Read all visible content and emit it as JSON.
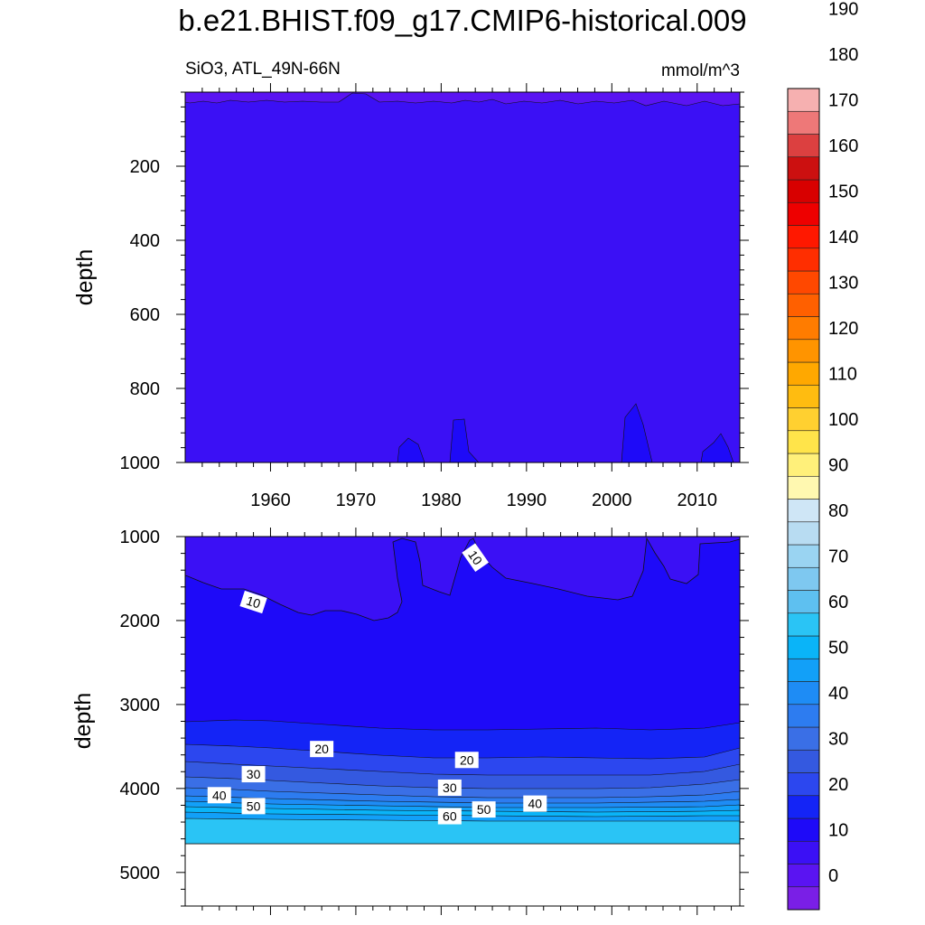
{
  "title": "b.e21.BHIST.f09_g17.CMIP6-historical.009",
  "subtitle_left": "SiO3, ATL_49N-66N",
  "subtitle_right": "mmol/m^3",
  "chart_data": [
    {
      "type": "contour",
      "panel": "upper",
      "xlabel": "",
      "ylabel": "depth",
      "xlim": [
        1950,
        2015
      ],
      "ylim": [
        1000,
        0
      ],
      "x_ticks": [
        1960,
        1970,
        1980,
        1990,
        2000,
        2010
      ],
      "y_ticks": [
        200,
        400,
        600,
        800,
        1000
      ],
      "regions": [
        {
          "level_range": [
            0,
            5
          ],
          "desc": "thin surface layer",
          "depth_range": [
            0,
            35
          ]
        },
        {
          "level_range": [
            5,
            10
          ],
          "desc": "bulk of upper ocean",
          "depth_range": [
            35,
            1000
          ]
        },
        {
          "level_range": [
            10,
            15
          ],
          "desc": "intrusions near bottom",
          "years": [
            1976,
            1982,
            2002,
            2012
          ],
          "depth_range": [
            860,
            1000
          ]
        }
      ]
    },
    {
      "type": "contour",
      "panel": "lower",
      "xlabel": "",
      "ylabel": "depth",
      "xlim": [
        1950,
        2015
      ],
      "ylim": [
        5400,
        1000
      ],
      "x_ticks": [
        1960,
        1970,
        1980,
        1990,
        2000,
        2010
      ],
      "y_ticks": [
        1000,
        2000,
        3000,
        4000,
        5000
      ],
      "contour_labels": [
        {
          "text": "10",
          "year": 1958,
          "depth": 1780
        },
        {
          "text": "10",
          "year": 1984,
          "depth": 1250
        },
        {
          "text": "20",
          "year": 1966,
          "depth": 3530
        },
        {
          "text": "20",
          "year": 1983,
          "depth": 3660
        },
        {
          "text": "30",
          "year": 1958,
          "depth": 3830
        },
        {
          "text": "30",
          "year": 1981,
          "depth": 3990
        },
        {
          "text": "40",
          "year": 1954,
          "depth": 4080
        },
        {
          "text": "40",
          "year": 1991,
          "depth": 4180
        },
        {
          "text": "50",
          "year": 1958,
          "depth": 4210
        },
        {
          "text": "50",
          "year": 1985,
          "depth": 4250
        },
        {
          "text": "60",
          "year": 1981,
          "depth": 4330
        }
      ],
      "bottom_depth": 4620
    }
  ],
  "colorbar": {
    "labels": [
      "0",
      "10",
      "20",
      "30",
      "40",
      "50",
      "60",
      "70",
      "80",
      "90",
      "100",
      "110",
      "120",
      "130",
      "140",
      "150",
      "160",
      "170",
      "180",
      "190"
    ],
    "colors": [
      "#7a1fe6",
      "#5a14f2",
      "#3b10f5",
      "#1e0af8",
      "#1424f6",
      "#2c47ef",
      "#3459e0",
      "#3a6fe6",
      "#2d7cf0",
      "#1e8cf5",
      "#12a0f8",
      "#0ab4f8",
      "#2ac4f5",
      "#5ec0f0",
      "#7ec8f0",
      "#9ad4f2",
      "#b8dcf2",
      "#cfe6f6",
      "#fff8b0",
      "#fff07a",
      "#ffe44a",
      "#ffd030",
      "#ffbc10",
      "#ffa800",
      "#ff9400",
      "#ff7c00",
      "#ff6000",
      "#ff4800",
      "#ff2e00",
      "#ff1800",
      "#ee0000",
      "#d80000",
      "#cc1010",
      "#dc4040",
      "#ee7878",
      "#f6b0b0"
    ]
  }
}
